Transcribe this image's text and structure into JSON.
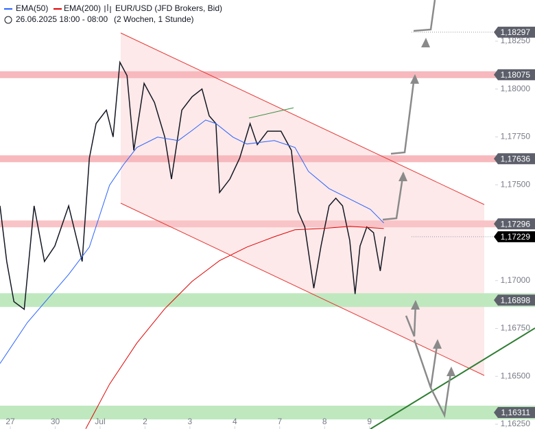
{
  "chart_data": {
    "type": "line",
    "title": "EUR/USD (JFD Brokers, Bid)",
    "subtitle": "26.06.2025 18:00 - 08:00",
    "period": "(2 Wochen, 1 Stunde)",
    "xlim": [
      -0.23,
      10.77
    ],
    "ylim": [
      1.16225,
      1.18465
    ],
    "xticks": [
      {
        "value": 0,
        "label": "27"
      },
      {
        "value": 1,
        "label": "30"
      },
      {
        "value": 2,
        "label": "Jul"
      },
      {
        "value": 3,
        "label": "2"
      },
      {
        "value": 4,
        "label": "3"
      },
      {
        "value": 5,
        "label": "4"
      },
      {
        "value": 6,
        "label": "7"
      },
      {
        "value": 7,
        "label": "8"
      },
      {
        "value": 8,
        "label": "9"
      }
    ],
    "yticks": [
      {
        "value": 1.1625,
        "label": "1,16250"
      },
      {
        "value": 1.165,
        "label": "1,16500"
      },
      {
        "value": 1.1675,
        "label": "1,16750"
      },
      {
        "value": 1.17,
        "label": "1,17000"
      },
      {
        "value": 1.175,
        "label": "1,17500"
      },
      {
        "value": 1.1775,
        "label": "1,17750"
      },
      {
        "value": 1.18,
        "label": "1,18000"
      },
      {
        "value": 1.1825,
        "label": "1,18250"
      }
    ],
    "series": [
      {
        "color": "#131722",
        "x": [
          -0.23,
          -0.08,
          0.08,
          0.31,
          0.53,
          0.76,
          0.99,
          1.3,
          1.6,
          1.76,
          1.91,
          2.14,
          2.29,
          2.44,
          2.6,
          2.75,
          2.98,
          3.21,
          3.44,
          3.59,
          3.82,
          4.05,
          4.27,
          4.43,
          4.58,
          4.66,
          4.89,
          5.11,
          5.34,
          5.5,
          5.73,
          6.03,
          6.26,
          6.41,
          6.56,
          6.76,
          6.92,
          7.1,
          7.25,
          7.4,
          7.56,
          7.68,
          7.79,
          7.94,
          8.09,
          8.24,
          8.35
        ],
        "values": [
          1.1739,
          1.171,
          1.1689,
          1.1685,
          1.1739,
          1.171,
          1.1718,
          1.1739,
          1.171,
          1.1764,
          1.1782,
          1.1789,
          1.1775,
          1.1814,
          1.1807,
          1.1768,
          1.1803,
          1.1793,
          1.1775,
          1.1753,
          1.1789,
          1.1796,
          1.18,
          1.1786,
          1.1782,
          1.1746,
          1.1753,
          1.1764,
          1.1782,
          1.1771,
          1.1778,
          1.1778,
          1.1768,
          1.1736,
          1.1728,
          1.1696,
          1.1718,
          1.1739,
          1.1743,
          1.1739,
          1.1721,
          1.1693,
          1.1718,
          1.1728,
          1.1725,
          1.1705,
          1.1723
        ]
      },
      {
        "name": "EMA(50)",
        "color": "#2962ff",
        "x": [
          -0.23,
          0.38,
          1.3,
          1.76,
          2.21,
          2.52,
          2.82,
          3.28,
          3.74,
          4.05,
          4.35,
          4.58,
          4.96,
          5.27,
          5.88,
          6.34,
          6.64,
          7.1,
          7.56,
          8.02,
          8.32
        ],
        "values": [
          1.16567,
          1.16781,
          1.17032,
          1.17175,
          1.17498,
          1.17605,
          1.17695,
          1.17749,
          1.17731,
          1.17784,
          1.17838,
          1.1782,
          1.17749,
          1.17713,
          1.17731,
          1.17695,
          1.1757,
          1.1748,
          1.17426,
          1.17372,
          1.17301
        ]
      },
      {
        "name": "EMA(200)",
        "color": "#e00000",
        "x": [
          1.68,
          2.21,
          2.82,
          3.44,
          4.05,
          4.66,
          5.27,
          5.88,
          6.34,
          6.95,
          7.56,
          8.32
        ],
        "values": [
          1.16226,
          1.16459,
          1.16674,
          1.16853,
          1.16996,
          1.17104,
          1.17175,
          1.17229,
          1.17265,
          1.17272,
          1.17283,
          1.17272
        ]
      }
    ],
    "levels": [
      {
        "value": 1.18297,
        "label": "1,18297",
        "color": "#5d606b"
      },
      {
        "value": 1.18075,
        "label": "1,18075",
        "color": "#5d606b",
        "zone": "#f7b9bd"
      },
      {
        "value": 1.17636,
        "label": "1,17636",
        "color": "#5d606b",
        "zone": "#f7b9bd"
      },
      {
        "value": 1.17296,
        "label": "1,17296",
        "color": "#5d606b",
        "zone": "#f9c4c7"
      },
      {
        "value": 1.17229,
        "label": "1,17229",
        "color": "#000000"
      },
      {
        "value": 1.16898,
        "label": "1,16898",
        "color": "#5d606b",
        "zone": "#bfe8bf"
      },
      {
        "value": 1.16311,
        "label": "1,16311",
        "color": "#5d606b",
        "zone": "#bfe8bf"
      }
    ]
  }
}
